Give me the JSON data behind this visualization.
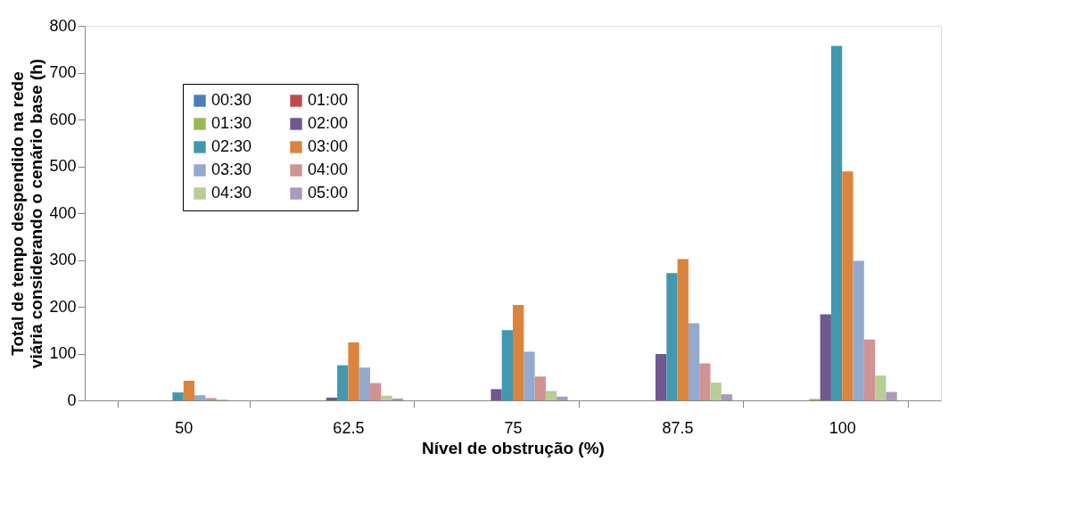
{
  "chart_data": {
    "type": "bar",
    "xlabel": "Nível de obstrução (%)",
    "ylabel": "Total de tempo despendido na rede\nviária considerando o cenário base (h)",
    "categories": [
      "50",
      "62.5",
      "75",
      "87.5",
      "100"
    ],
    "series": [
      {
        "name": "00:30",
        "color": "#4a7ebb",
        "values": [
          0,
          0,
          0,
          0,
          0
        ]
      },
      {
        "name": "01:00",
        "color": "#be4b48",
        "values": [
          0,
          0,
          0,
          0,
          0
        ]
      },
      {
        "name": "01:30",
        "color": "#98b954",
        "values": [
          0,
          0,
          0,
          0,
          3
        ]
      },
      {
        "name": "02:00",
        "color": "#71588f",
        "values": [
          0,
          6,
          24,
          99,
          184
        ]
      },
      {
        "name": "02:30",
        "color": "#4198af",
        "values": [
          17,
          75,
          150,
          272,
          757
        ]
      },
      {
        "name": "03:00",
        "color": "#db843d",
        "values": [
          42,
          124,
          204,
          302,
          489
        ]
      },
      {
        "name": "03:30",
        "color": "#93a9cf",
        "values": [
          11,
          70,
          104,
          165,
          298
        ]
      },
      {
        "name": "04:00",
        "color": "#d19392",
        "values": [
          5,
          37,
          51,
          79,
          130
        ]
      },
      {
        "name": "04:30",
        "color": "#b9cd96",
        "values": [
          2,
          10,
          20,
          38,
          53
        ]
      },
      {
        "name": "05:00",
        "color": "#a99bbd",
        "values": [
          null,
          4,
          8,
          13,
          18
        ]
      }
    ],
    "ylim": [
      0,
      800
    ],
    "yticks": [
      0,
      100,
      200,
      300,
      400,
      500,
      600,
      700,
      800
    ],
    "grid": false,
    "legend": "top left"
  }
}
